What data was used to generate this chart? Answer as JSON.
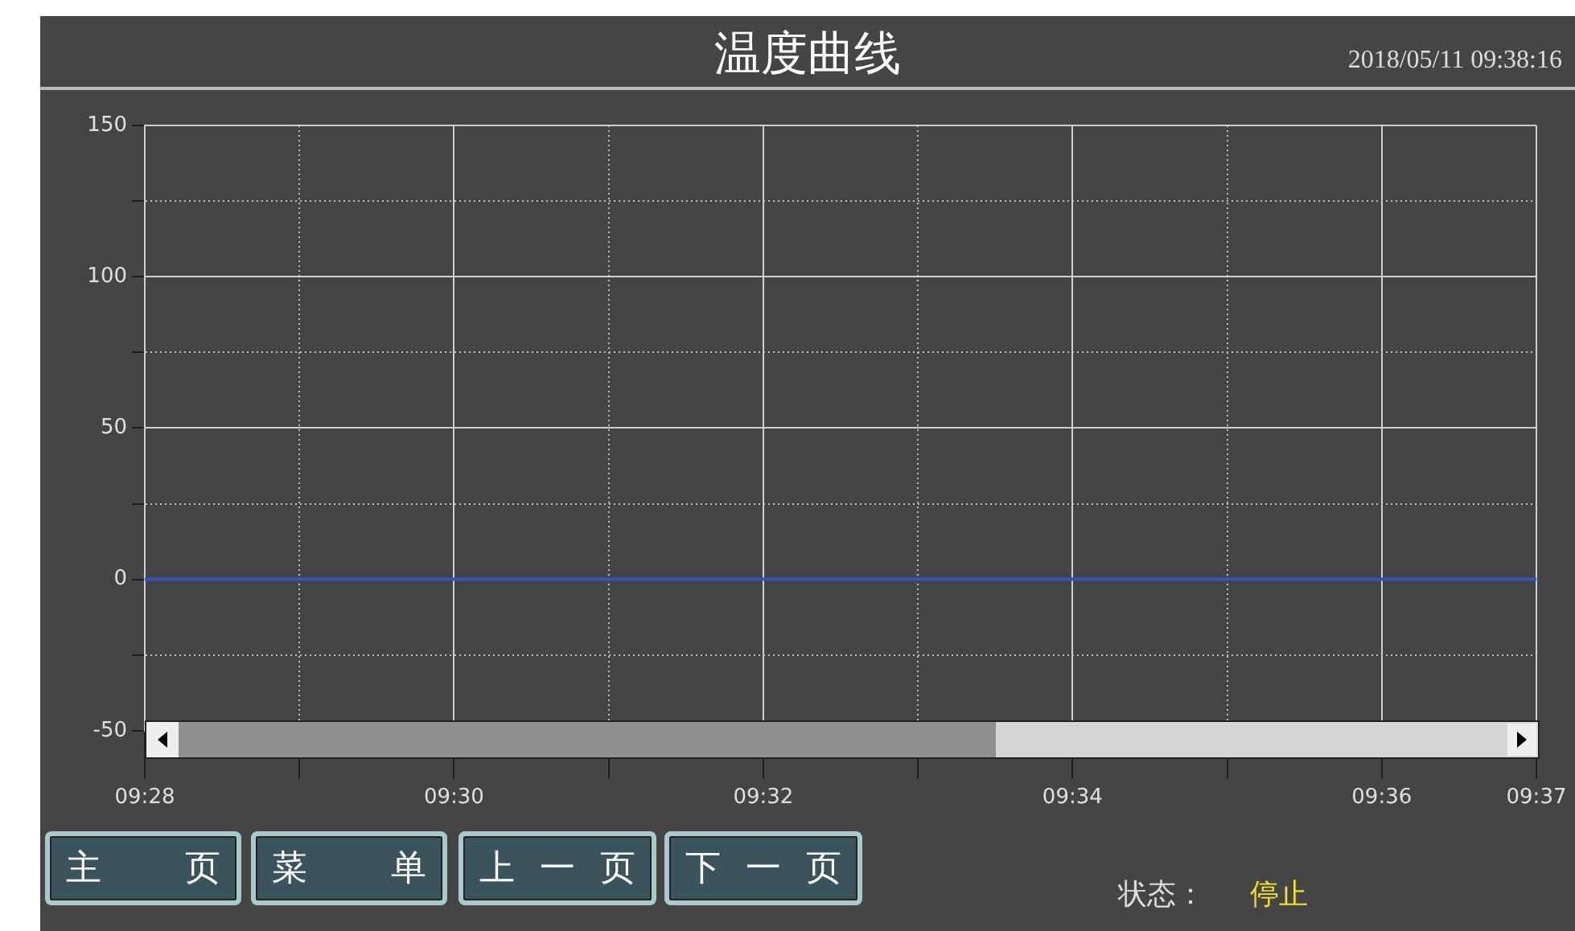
{
  "chart_data": {
    "type": "line",
    "title": "温度曲线",
    "x": [
      9.466667,
      9.616667
    ],
    "series": [
      {
        "color": "#2f55c8",
        "values": [
          0,
          0
        ]
      }
    ],
    "xlim": [
      9.466667,
      9.616667
    ],
    "xticks": [
      {
        "value": 9.466667,
        "label": "09:28"
      },
      {
        "value": 9.483333,
        "label": null
      },
      {
        "value": 9.5,
        "label": "09:30"
      },
      {
        "value": 9.516667,
        "label": null
      },
      {
        "value": 9.533333,
        "label": "09:32"
      },
      {
        "value": 9.55,
        "label": null
      },
      {
        "value": 9.566667,
        "label": "09:34"
      },
      {
        "value": 9.583333,
        "label": null
      },
      {
        "value": 9.6,
        "label": "09:36"
      },
      {
        "value": 9.616667,
        "label": "09:37"
      }
    ],
    "ylim": [
      -50,
      150
    ],
    "yticks": [
      -50,
      {
        "value": -25,
        "label": null
      },
      0,
      {
        "value": 25,
        "label": null
      },
      50,
      {
        "value": 75,
        "label": null
      },
      100,
      {
        "value": 125,
        "label": null
      },
      150
    ],
    "grid": true,
    "legend": false,
    "marker": "none",
    "line_style": "solid",
    "annotations": [
      "2018/05/11 09:38:16",
      "主 页",
      "菜 单",
      "上 一 页",
      "下 一 页",
      "状态：",
      "停止"
    ]
  }
}
